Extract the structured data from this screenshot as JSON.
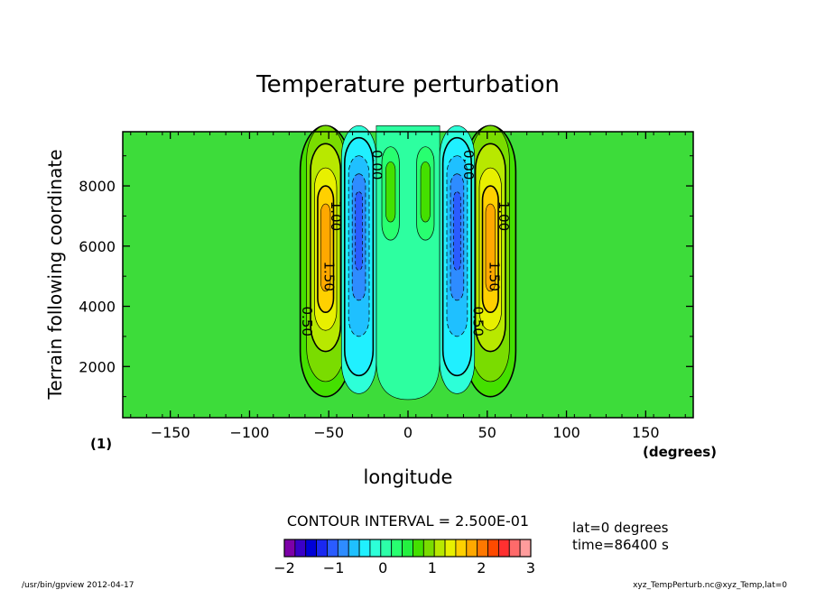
{
  "chart_data": {
    "type": "contour",
    "title": "Temperature perturbation",
    "xlabel": "longitude",
    "ylabel": "Terrain following coordinate",
    "x_units": "(degrees)",
    "panel_label": "(1)",
    "xlim": [
      -180,
      180
    ],
    "ylim": [
      300,
      9800
    ],
    "x_ticks": [
      -150,
      -100,
      -50,
      0,
      50,
      100,
      150
    ],
    "x_tick_labels": [
      "−150",
      "−100",
      "−50",
      "0",
      "50",
      "100",
      "150"
    ],
    "y_ticks": [
      2000,
      4000,
      6000,
      8000
    ],
    "y_tick_labels": [
      "2000",
      "4000",
      "6000",
      "8000"
    ],
    "contour_interval_text": "CONTOUR INTERVAL = 2.500E-01",
    "contour_labels": [
      {
        "text": "0.50",
        "x": -64,
        "y": 3500
      },
      {
        "text": "1.00",
        "x": -46,
        "y": 7000
      },
      {
        "text": "1.50",
        "x": -50,
        "y": 5000
      },
      {
        "text": "0.00",
        "x": -20,
        "y": 8700
      },
      {
        "text": "0.00",
        "x": 38,
        "y": 8700
      },
      {
        "text": "1.00",
        "x": 60,
        "y": 7000
      },
      {
        "text": "1.50",
        "x": 54,
        "y": 5000
      },
      {
        "text": "0.50",
        "x": 44,
        "y": 3500
      }
    ],
    "features": [
      {
        "type": "max",
        "lon": -52,
        "alt": 5800,
        "value": 1.75
      },
      {
        "type": "min",
        "lon": -30,
        "alt": 6800,
        "value": -0.75
      },
      {
        "type": "min",
        "lon": 30,
        "alt": 6800,
        "value": -0.75
      },
      {
        "type": "max",
        "lon": 52,
        "alt": 5800,
        "value": 1.75
      }
    ],
    "colorbar": {
      "ticks": [
        "−2",
        "−1",
        "0",
        "1",
        "2",
        "3"
      ],
      "tick_values": [
        -2,
        -1,
        0,
        1,
        2,
        3
      ],
      "colors": [
        "#7d00a8",
        "#3a00c8",
        "#0000d8",
        "#1a28f0",
        "#2a5cff",
        "#2e8cff",
        "#1fc0ff",
        "#20f0ff",
        "#2dffd8",
        "#2dffa8",
        "#28ff70",
        "#24f040",
        "#44e000",
        "#7adc00",
        "#b8e800",
        "#e8f000",
        "#ffd000",
        "#ffa800",
        "#ff7800",
        "#ff4a00",
        "#ff3030",
        "#ff6a6a",
        "#ff9c9c"
      ]
    }
  },
  "annotations": {
    "lat": "lat=0 degrees",
    "time": "time=86400 s"
  },
  "footer": {
    "left": "/usr/bin/gpview   2012-04-17",
    "right": "xyz_TempPerturb.nc@xyz_Temp,lat=0"
  }
}
